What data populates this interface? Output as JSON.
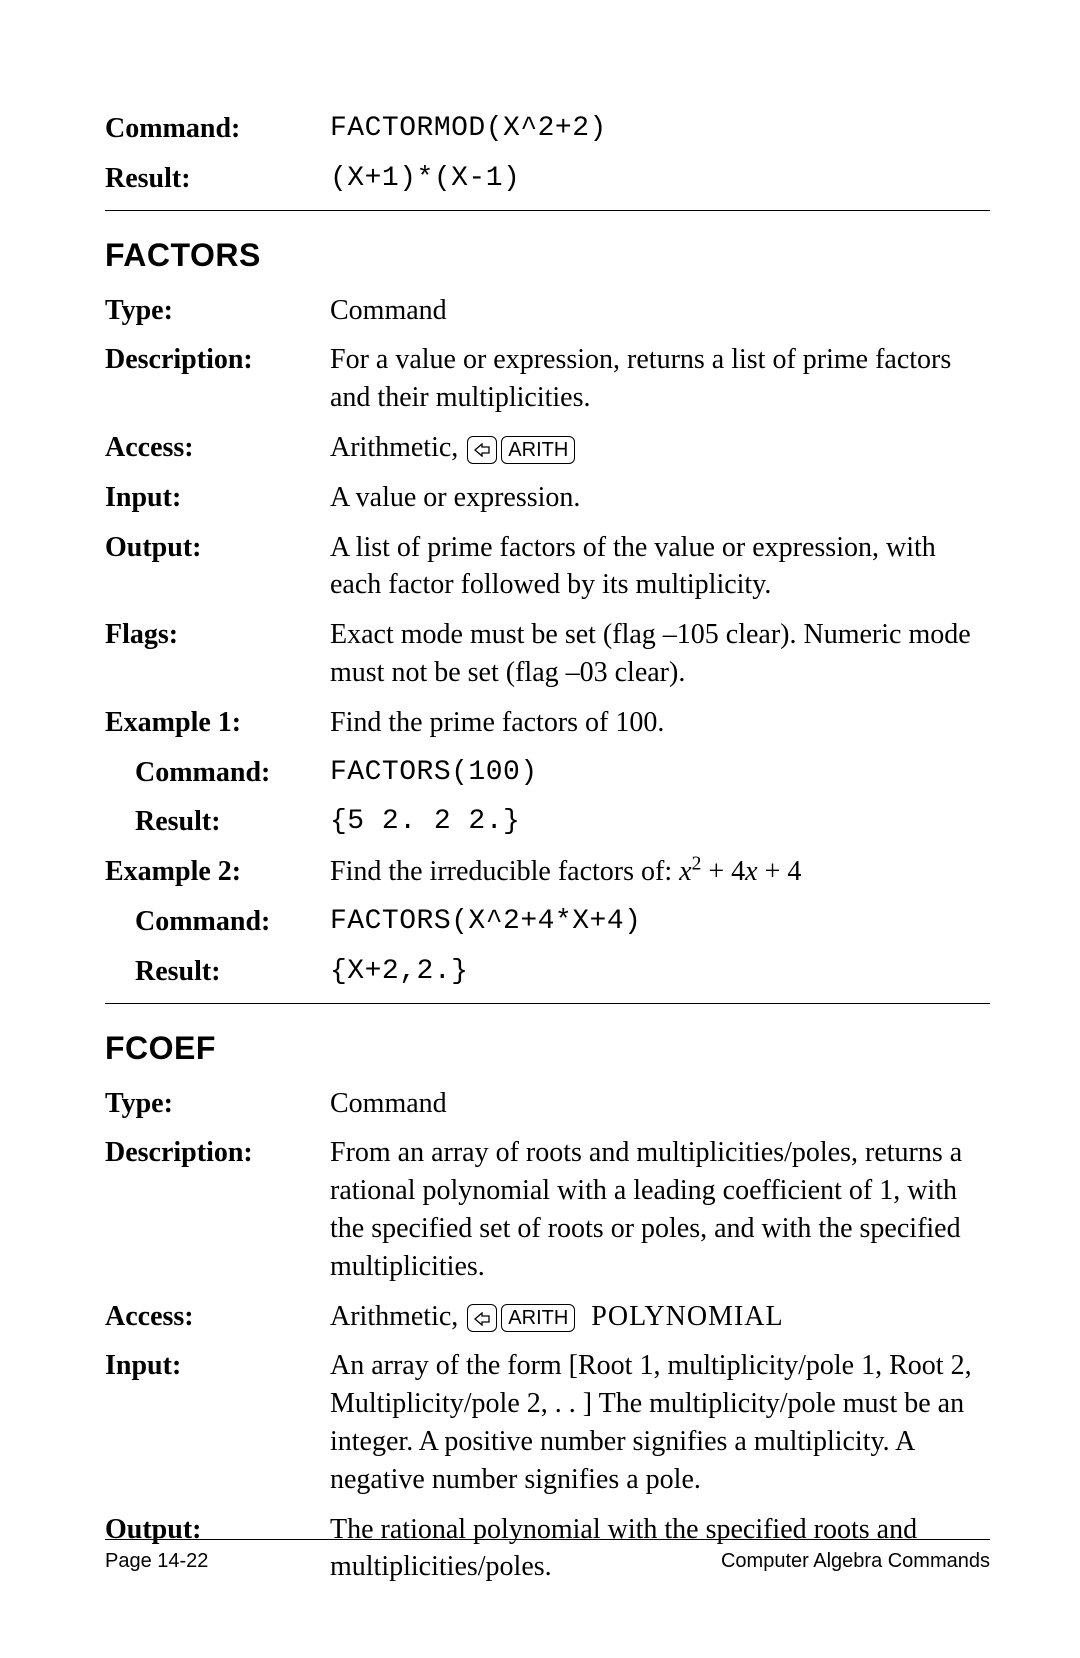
{
  "top_example": {
    "command_label": "Command:",
    "command_value": "FACTORMOD(X^2+2)",
    "result_label": "Result:",
    "result_value": "(X+1)*(X-1)"
  },
  "sections": [
    {
      "title": "FACTORS",
      "rows": [
        {
          "label": "Type:",
          "value_text": "Command"
        },
        {
          "label": "Description:",
          "value_text": "For a value or expression, returns a list of prime factors and their multiplicities."
        },
        {
          "label": "Access:",
          "value_text": "Arithmetic, ",
          "has_keys": true,
          "key_text": "ARITH",
          "suffix": ""
        },
        {
          "label": "Input:",
          "value_text": "A value or expression."
        },
        {
          "label": "Output:",
          "value_text": "A list of prime factors of the value or expression, with each factor followed by its multiplicity."
        },
        {
          "label": "Flags:",
          "value_text": "Exact mode must be set (flag –105 clear). Numeric mode must not be set (flag –03 clear)."
        },
        {
          "label": "Example 1:",
          "value_text": "Find the prime factors of 100."
        },
        {
          "label": "Command:",
          "indent": true,
          "value_mono": "FACTORS(100)"
        },
        {
          "label": "Result:",
          "indent": true,
          "value_mono": "{5 2. 2 2.}"
        },
        {
          "label": "Example 2:",
          "value_html_math": true,
          "math_prefix": "Find the irreducible factors of:  ",
          "math_var": "x",
          "math_rest": " + 4x + 4"
        },
        {
          "label": "Command:",
          "indent": true,
          "value_mono": "FACTORS(X^2+4*X+4)"
        },
        {
          "label": "Result:",
          "indent": true,
          "value_mono": "{X+2,2.}"
        }
      ]
    },
    {
      "title": "FCOEF",
      "rows": [
        {
          "label": "Type:",
          "value_text": "Command"
        },
        {
          "label": "Description:",
          "value_text": "From an array of roots and multiplicities/poles, returns a rational polynomial with a leading coefficient of 1, with the specified set of roots or poles, and with the specified multiplicities."
        },
        {
          "label": "Access:",
          "value_text": "Arithmetic, ",
          "has_keys": true,
          "key_text": "ARITH",
          "suffix": "POLYNOMIAL"
        },
        {
          "label": "Input:",
          "value_text": "An array of the form [Root 1, multiplicity/pole 1, Root 2, Multiplicity/pole 2, . . ] The multiplicity/pole must be an integer. A positive number signifies a multiplicity. A negative number signifies a pole."
        },
        {
          "label": "Output:",
          "value_text": "The rational polynomial with the specified roots and multiplicities/poles."
        }
      ]
    }
  ],
  "footer": {
    "left": "Page 14-22",
    "right": "Computer Algebra Commands"
  }
}
